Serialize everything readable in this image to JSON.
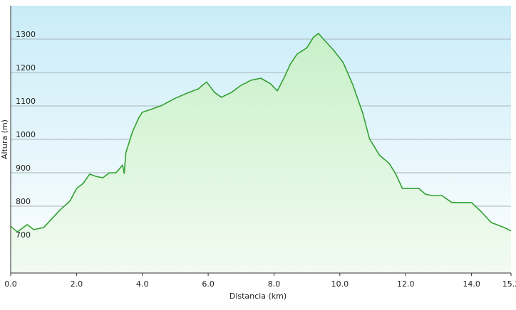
{
  "chart_data": {
    "type": "area-line",
    "x_label": "Distancia  (km)",
    "y_label": "Altura (m)",
    "x": [
      0,
      0.2,
      0.5,
      0.7,
      1.0,
      1.2,
      1.5,
      1.8,
      2.0,
      2.2,
      2.4,
      2.6,
      2.8,
      3.0,
      3.2,
      3.4,
      3.45,
      3.5,
      3.7,
      3.9,
      4.0,
      4.3,
      4.6,
      5.0,
      5.4,
      5.7,
      5.95,
      6.2,
      6.4,
      6.7,
      7.0,
      7.3,
      7.6,
      7.9,
      8.1,
      8.3,
      8.5,
      8.7,
      9.0,
      9.2,
      9.35,
      9.5,
      9.8,
      10.1,
      10.4,
      10.7,
      10.9,
      11.2,
      11.5,
      11.7,
      11.9,
      12.2,
      12.4,
      12.6,
      12.8,
      13.1,
      13.4,
      13.8,
      14.0,
      14.3,
      14.6,
      15.0,
      15.2
    ],
    "series": [
      {
        "name": "Altura",
        "color": "#33a033",
        "values": [
          740,
          723,
          745,
          730,
          736,
          757,
          789,
          815,
          853,
          868,
          896,
          889,
          885,
          900,
          900,
          923,
          898,
          960,
          1023,
          1066,
          1081,
          1091,
          1102,
          1123,
          1140,
          1151,
          1172,
          1140,
          1126,
          1140,
          1162,
          1177,
          1183,
          1166,
          1145,
          1183,
          1226,
          1255,
          1274,
          1306,
          1317,
          1300,
          1268,
          1230,
          1162,
          1077,
          1002,
          953,
          928,
          896,
          853,
          853,
          853,
          836,
          832,
          832,
          811,
          811,
          811,
          783,
          751,
          736,
          726
        ]
      }
    ],
    "xlim": [
      0,
      15.2
    ],
    "ylim": [
      600,
      1400
    ],
    "xticks": [
      {
        "value": 0,
        "label": "0.0"
      },
      {
        "value": 2,
        "label": "2.0"
      },
      {
        "value": 4,
        "label": "4.0"
      },
      {
        "value": 6,
        "label": "6.0"
      },
      {
        "value": 8,
        "label": "8.0"
      },
      {
        "value": 10,
        "label": "10.0"
      },
      {
        "value": 12,
        "label": "12.0"
      },
      {
        "value": 14,
        "label": "14.0"
      },
      15.2
    ],
    "yticks": [
      700,
      800,
      900,
      1000,
      1100,
      1200,
      1300
    ],
    "grid": true
  }
}
